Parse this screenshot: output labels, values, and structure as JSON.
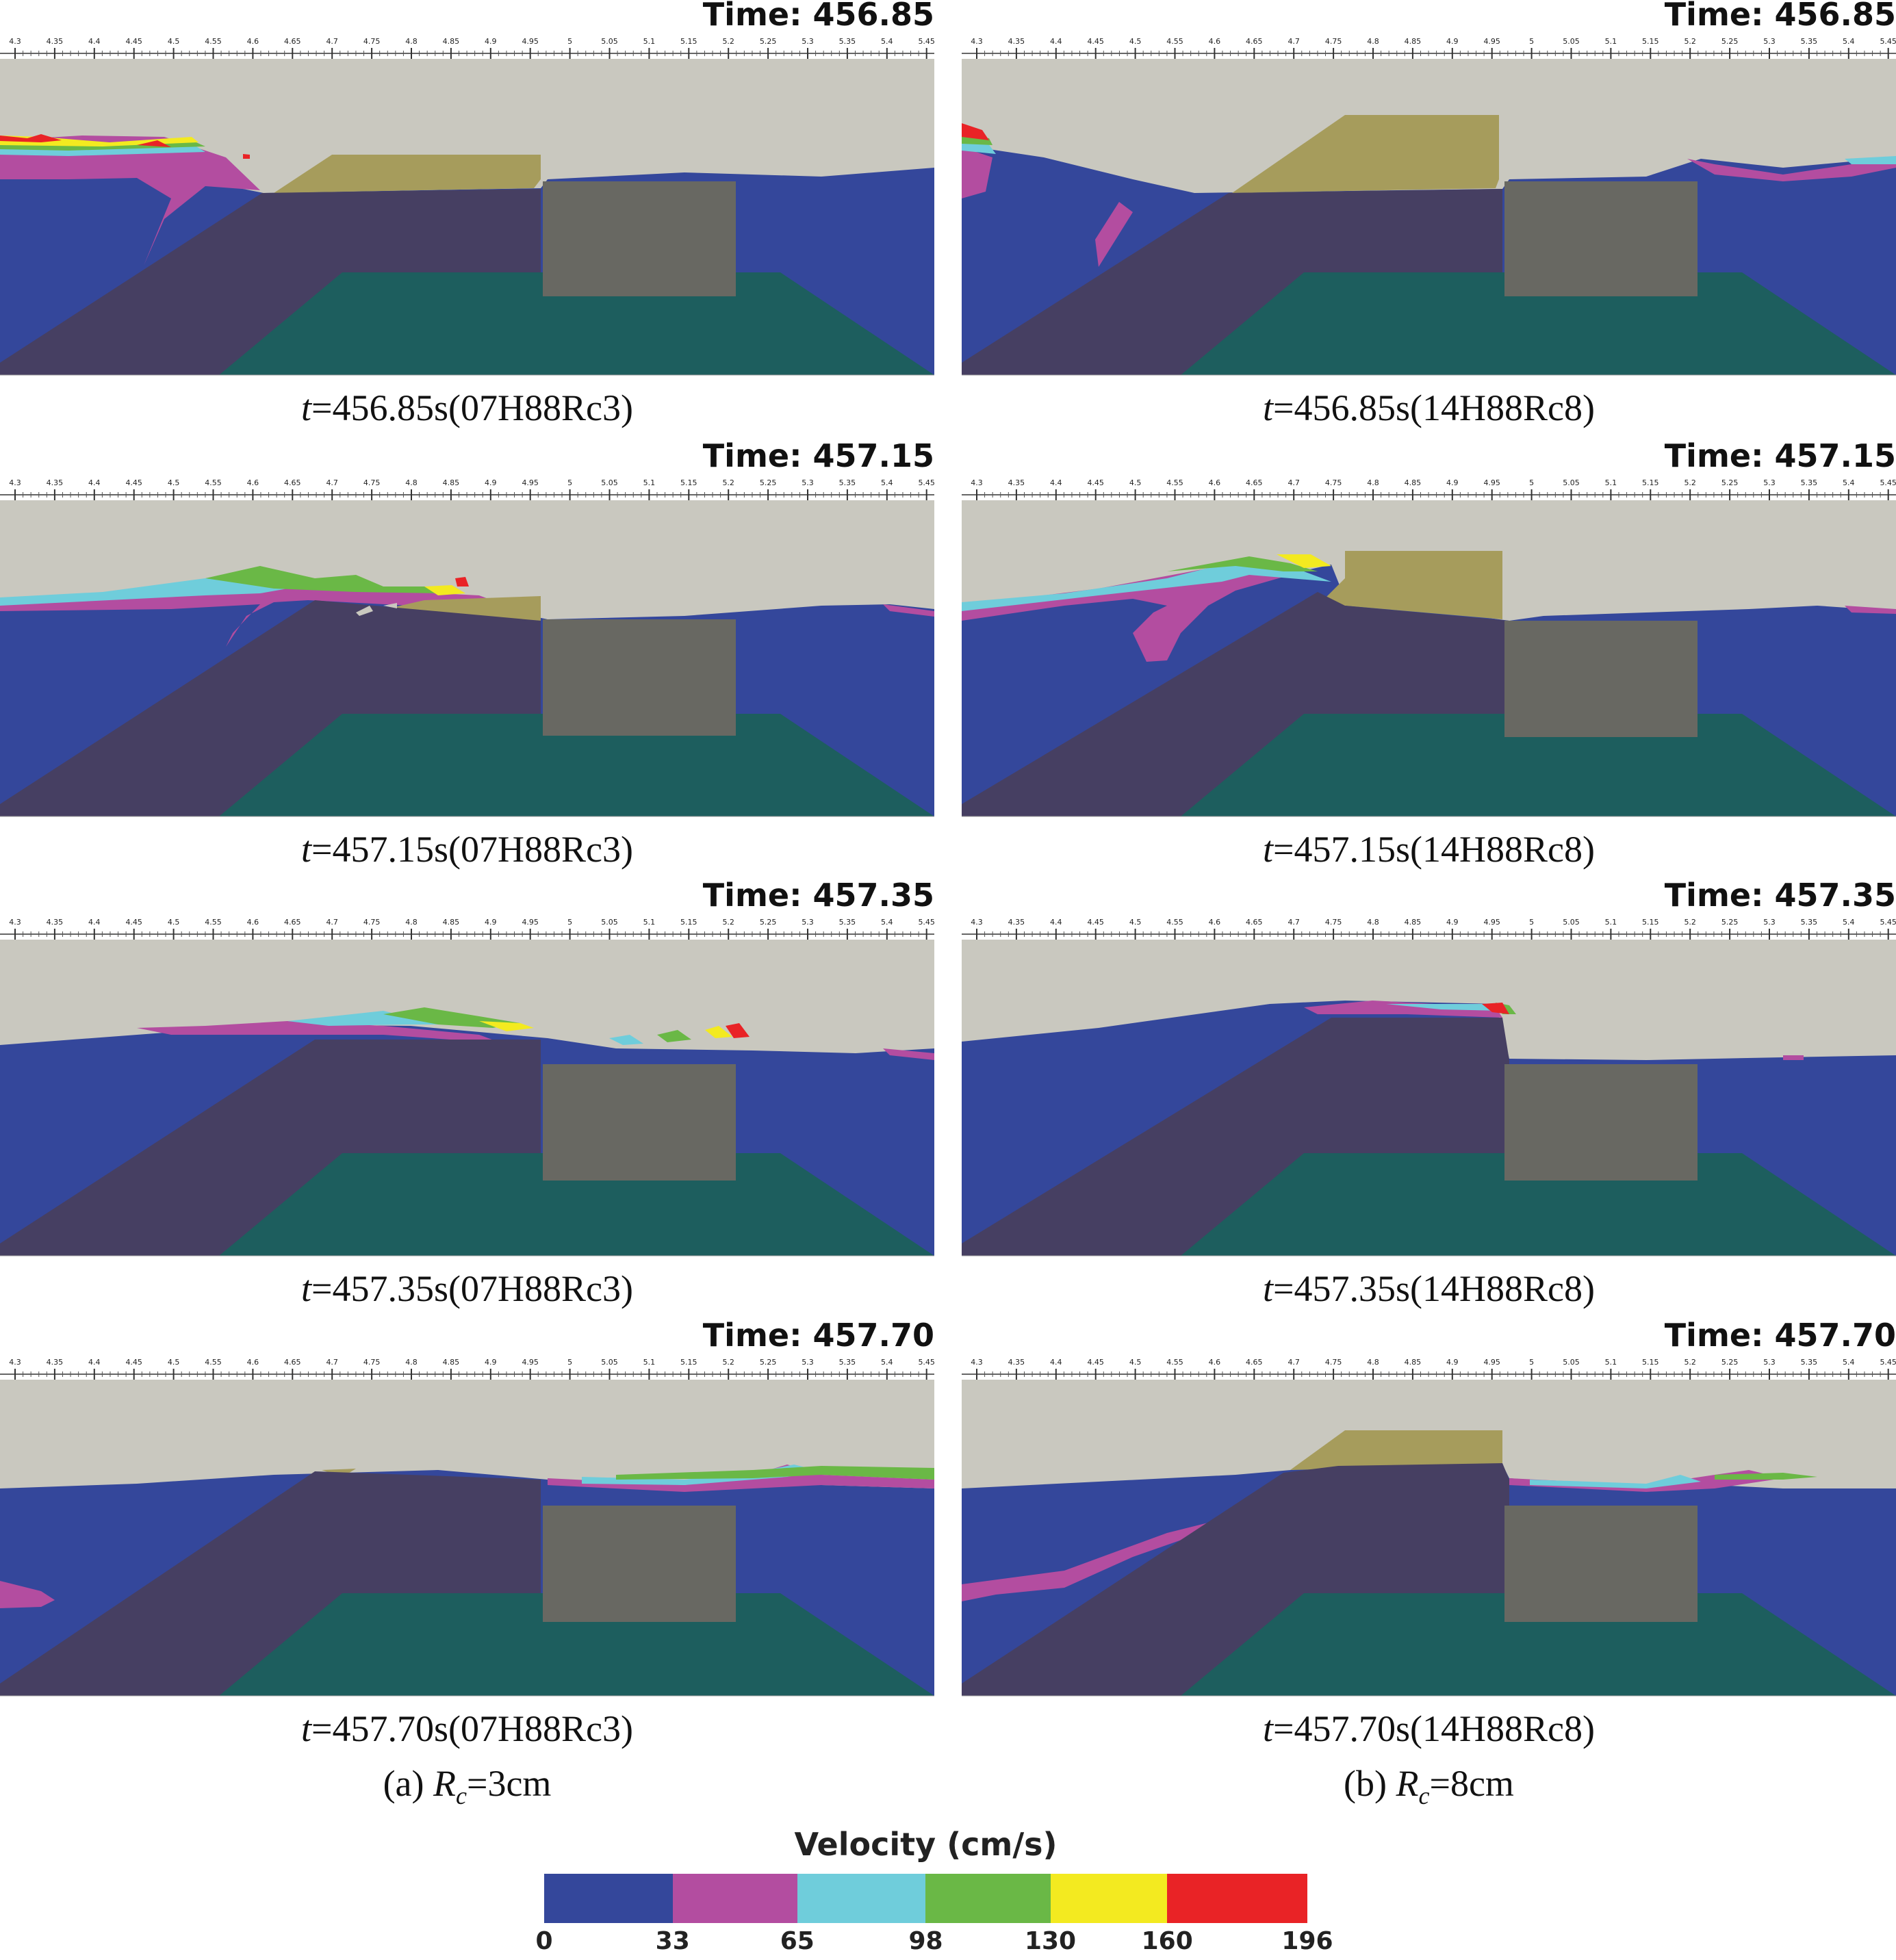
{
  "colors": {
    "air": "#c9c8bf",
    "water": "#34479b",
    "structure": "#463f62",
    "caisson": "#686862",
    "seabed": "#1d5e5e",
    "armor_exposed": "#a69c5c",
    "band_0_33": "#34479b",
    "band_33_65": "#b34da0",
    "band_65_98": "#6fcddb",
    "band_98_130": "#6ab846",
    "band_130_160": "#f3ea20",
    "band_160_196": "#e92326"
  },
  "axis_ticks": [
    "4.3",
    "4.35",
    "4.4",
    "4.45",
    "4.5",
    "4.55",
    "4.6",
    "4.65",
    "4.7",
    "4.75",
    "4.8",
    "4.85",
    "4.9",
    "4.95",
    "5",
    "5.05",
    "5.1",
    "5.15",
    "5.2",
    "5.25",
    "5.3",
    "5.35",
    "5.4",
    "5.45"
  ],
  "panels": [
    {
      "time_label": "Time: 456.85",
      "caption_var": "t",
      "caption_rest": "=456.85s(07H88Rc3)"
    },
    {
      "time_label": "Time: 456.85",
      "caption_var": "t",
      "caption_rest": "=456.85s(14H88Rc8)"
    },
    {
      "time_label": "Time: 457.15",
      "caption_var": "t",
      "caption_rest": "=457.15s(07H88Rc3)"
    },
    {
      "time_label": "Time: 457.15",
      "caption_var": "t",
      "caption_rest": "=457.15s(14H88Rc8)"
    },
    {
      "time_label": "Time: 457.35",
      "caption_var": "t",
      "caption_rest": "=457.35s(07H88Rc3)"
    },
    {
      "time_label": "Time: 457.35",
      "caption_var": "t",
      "caption_rest": "=457.35s(14H88Rc8)"
    },
    {
      "time_label": "Time: 457.70",
      "caption_var": "t",
      "caption_rest": "=457.70s(07H88Rc3)"
    },
    {
      "time_label": "Time: 457.70",
      "caption_var": "t",
      "caption_rest": "=457.70s(14H88Rc8)"
    }
  ],
  "columns": [
    {
      "prefix": "(a)",
      "var": "R",
      "sub": "c",
      "value": "=3cm"
    },
    {
      "prefix": "(b)",
      "var": "R",
      "sub": "c",
      "value": "=8cm"
    }
  ],
  "legend": {
    "title": "Velocity (cm/s)",
    "ticks": [
      "0",
      "33",
      "65",
      "98",
      "130",
      "160",
      "196"
    ],
    "band_colors": [
      "#34479b",
      "#b34da0",
      "#6fcddb",
      "#6ab846",
      "#f3ea20",
      "#e92326"
    ]
  }
}
